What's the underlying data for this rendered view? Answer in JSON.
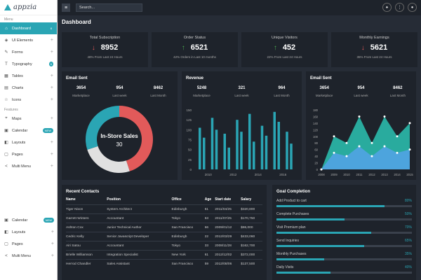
{
  "app": {
    "name": "appzia"
  },
  "sidebar": {
    "menu_label": "Menu",
    "features_label": "Features",
    "items": [
      {
        "label": "Dashboard",
        "icon": "home-icon",
        "glyph": "⌂",
        "badge": "8",
        "active": true
      },
      {
        "label": "UI Elements",
        "icon": "layers-icon",
        "glyph": "◈",
        "plus": "+"
      },
      {
        "label": "Forms",
        "icon": "pencil-icon",
        "glyph": "✎",
        "plus": "+"
      },
      {
        "label": "Typography",
        "icon": "text-icon",
        "glyph": "T",
        "badge": "6"
      },
      {
        "label": "Tables",
        "icon": "table-icon",
        "glyph": "▦",
        "plus": "+"
      },
      {
        "label": "Charts",
        "icon": "chart-icon",
        "glyph": "▤",
        "plus": "+"
      },
      {
        "label": "Icons",
        "icon": "star-icon",
        "glyph": "☆",
        "plus": "+"
      },
      {
        "label": "Maps",
        "icon": "map-icon",
        "glyph": "⌖",
        "plus": "+"
      },
      {
        "label": "Calendar",
        "icon": "calendar-icon",
        "glyph": "▣",
        "badge": "NEW"
      },
      {
        "label": "Layouts",
        "icon": "layout-icon",
        "glyph": "◧",
        "plus": "+"
      },
      {
        "label": "Pages",
        "icon": "pages-icon",
        "glyph": "▢",
        "plus": "+"
      },
      {
        "label": "Multi Menu",
        "icon": "share-icon",
        "glyph": "<",
        "plus": "+"
      }
    ],
    "bottom_items": [
      {
        "label": "Calendar",
        "icon": "calendar-icon",
        "glyph": "▣",
        "badge": "NEW"
      },
      {
        "label": "Layouts",
        "icon": "layout-icon",
        "glyph": "◧",
        "plus": "+"
      },
      {
        "label": "Pages",
        "icon": "pages-icon",
        "glyph": "▢",
        "plus": "+"
      },
      {
        "label": "Multi Menu",
        "icon": "share-icon",
        "glyph": "<",
        "plus": "+"
      }
    ]
  },
  "topbar": {
    "search_placeholder": "Search...",
    "menu_icon": "menu-icon",
    "icons": [
      {
        "name": "bell-icon",
        "glyph": "♠"
      },
      {
        "name": "grid-icon",
        "glyph": "⋮"
      },
      {
        "name": "avatar-icon",
        "glyph": "●"
      }
    ]
  },
  "page": {
    "title": "Dashboard"
  },
  "stats": [
    {
      "title": "Total Subscription",
      "value": "8952",
      "dir": "down",
      "color": "#e25a5a",
      "sub": "48% From Last 24 Hours"
    },
    {
      "title": "Order Status",
      "value": "6521",
      "dir": "up",
      "color": "#4caf50",
      "sub": "42% Orders in Last 10 months"
    },
    {
      "title": "Unique Visitors",
      "value": "452",
      "dir": "up",
      "color": "#4caf50",
      "sub": "22% From Last 24 Hours"
    },
    {
      "title": "Monthly Earnings",
      "value": "5621",
      "dir": "down",
      "color": "#e25a5a",
      "sub": "35% From Last 24 Hours"
    }
  ],
  "email_card": {
    "title": "Email Sent",
    "metrics": [
      {
        "n": "3654",
        "l": "Marketplace"
      },
      {
        "n": "954",
        "l": "Last week"
      },
      {
        "n": "8462",
        "l": "Last Month"
      }
    ]
  },
  "revenue_card": {
    "title": "Revenue",
    "metrics": [
      {
        "n": "5248",
        "l": "Marketplace"
      },
      {
        "n": "321",
        "l": "Last week"
      },
      {
        "n": "964",
        "l": "Last Month"
      }
    ]
  },
  "email_card2": {
    "title": "Email Sent",
    "metrics": [
      {
        "n": "3654",
        "l": "Marketplace"
      },
      {
        "n": "954",
        "l": "Last week"
      },
      {
        "n": "8462",
        "l": "Last Month"
      }
    ]
  },
  "colors": {
    "teal": "#2aa5b4",
    "red": "#e25a5a",
    "grey": "#e0e0e0",
    "blue": "#4fa3e0"
  },
  "chart_data": [
    {
      "type": "pie",
      "title": "",
      "center_label": "In-Store Sales",
      "center_value": "30",
      "slices": [
        {
          "value": 45,
          "color": "#e25a5a"
        },
        {
          "value": 25,
          "color": "#e0e0e0"
        },
        {
          "value": 30,
          "color": "#2aa5b4"
        }
      ]
    },
    {
      "type": "bar",
      "title": "Revenue",
      "categories": [
        "2010",
        "2011",
        "2012",
        "2013",
        "2014",
        "2015",
        "2016",
        "2017"
      ],
      "ylim": [
        0,
        150
      ],
      "yticks": [
        0,
        25,
        50,
        75,
        100,
        125,
        150
      ],
      "xticks": [
        "2010",
        "2012",
        "2014",
        "2016"
      ],
      "series": [
        {
          "values": [
            105,
            130,
            90,
            125,
            140,
            110,
            145,
            95
          ]
        },
        {
          "values": [
            80,
            100,
            55,
            95,
            70,
            85,
            120,
            65
          ]
        }
      ]
    },
    {
      "type": "area",
      "title": "Email Sent",
      "x": [
        2008,
        2009,
        2010,
        2011,
        2012,
        2013,
        2014,
        2015
      ],
      "ylim": [
        0,
        180
      ],
      "yticks": [
        0,
        20,
        40,
        60,
        80,
        100,
        120,
        140,
        160,
        180
      ],
      "xticks": [
        "2008",
        "2009",
        "2010",
        "2011",
        "2012",
        "2013",
        "2014",
        "2015"
      ],
      "series": [
        {
          "values": [
            0,
            100,
            80,
            160,
            80,
            160,
            100,
            140
          ],
          "color": "#2ab3a4"
        },
        {
          "values": [
            0,
            50,
            40,
            70,
            40,
            70,
            50,
            60
          ],
          "color": "#4fa3e0"
        }
      ]
    }
  ],
  "contacts": {
    "title": "Recent Contacts",
    "headers": [
      "Name",
      "Position",
      "Office",
      "Age",
      "Start date",
      "Salary"
    ],
    "rows": [
      [
        "Tiger Nixon",
        "System Architect",
        "Edinburgh",
        "61",
        "2011/04/25",
        "$320,800"
      ],
      [
        "Garrett Winters",
        "Accountant",
        "Tokyo",
        "63",
        "2011/07/25",
        "$170,750"
      ],
      [
        "Ashton Cox",
        "Junior Technical Author",
        "San Francisco",
        "66",
        "2009/01/12",
        "$86,000"
      ],
      [
        "Cedric Kelly",
        "Senior Javascript Developer",
        "Edinburgh",
        "22",
        "2012/03/29",
        "$433,060"
      ],
      [
        "Airi Satou",
        "Accountant",
        "Tokyo",
        "33",
        "2008/11/28",
        "$162,700"
      ],
      [
        "Brielle Williamson",
        "Integration Specialist",
        "New York",
        "61",
        "2012/12/02",
        "$372,000"
      ],
      [
        "Herrod Chandler",
        "Sales Assistant",
        "San Francisco",
        "59",
        "2012/08/06",
        "$137,500"
      ]
    ]
  },
  "goals": {
    "title": "Goal Completion",
    "items": [
      {
        "label": "Add Product to cart",
        "pct": "80%",
        "fill": 0.8
      },
      {
        "label": "Complete Purchases",
        "pct": "50%",
        "fill": 0.5
      },
      {
        "label": "Visit Premium plan",
        "pct": "70%",
        "fill": 0.7
      },
      {
        "label": "Send Inquiries",
        "pct": "65%",
        "fill": 0.65
      },
      {
        "label": "Monthly Purchases",
        "pct": "35%",
        "fill": 0.35
      },
      {
        "label": "Daily Visits",
        "pct": "40%",
        "fill": 0.4
      }
    ]
  }
}
